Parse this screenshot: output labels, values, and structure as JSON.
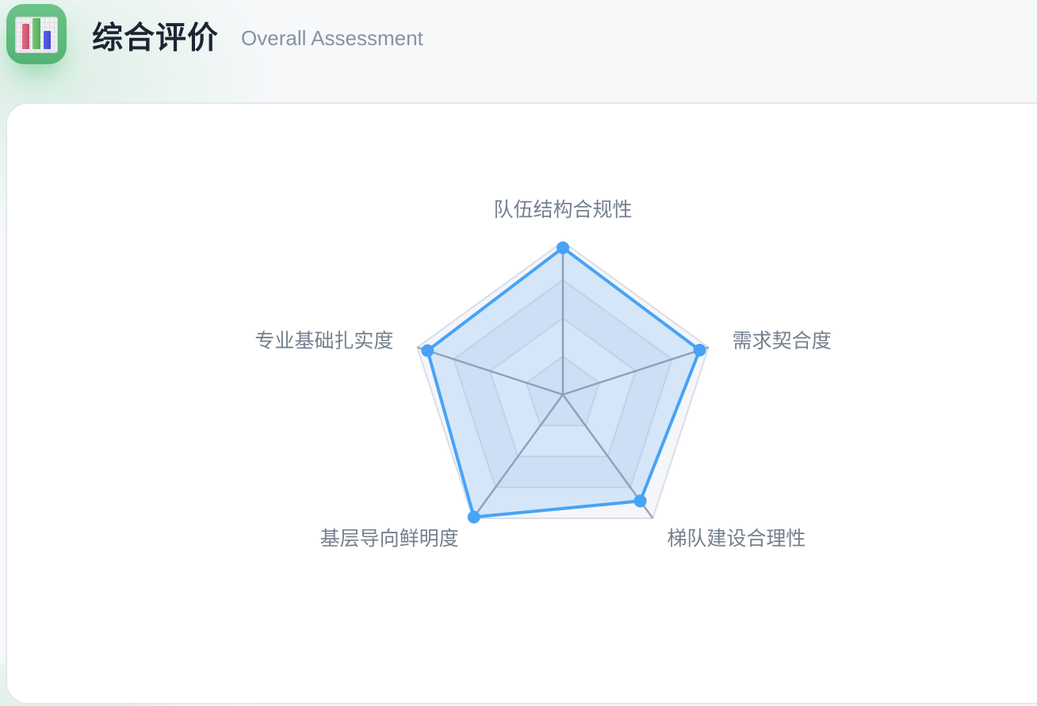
{
  "header": {
    "title": "综合评价",
    "subtitle": "Overall Assessment",
    "icon": "bar-chart-icon"
  },
  "chart_data": {
    "type": "radar",
    "title": "",
    "legend_position": "none",
    "levels": 4,
    "axis_range": [
      0,
      100
    ],
    "indicators": [
      {
        "name": "队伍结构合规性",
        "max": 100
      },
      {
        "name": "需求契合度",
        "max": 100
      },
      {
        "name": "梯队建设合理性",
        "max": 100
      },
      {
        "name": "基层导向鲜明度",
        "max": 100
      },
      {
        "name": "专业基础扎实度",
        "max": 100
      }
    ],
    "series": [
      {
        "name": "综合评价",
        "values": [
          96,
          94,
          86,
          99,
          93
        ]
      }
    ],
    "colors": {
      "line": "#47a3f6",
      "area_fill": "rgba(71,163,246,0.18)",
      "symbol": "#47a3f6",
      "band_light": "#f5f6fa",
      "band_dark": "#e9edf4",
      "ring_line": "#d9dde8",
      "axis_line": "#9ba2ac",
      "label": "#75808f"
    }
  }
}
